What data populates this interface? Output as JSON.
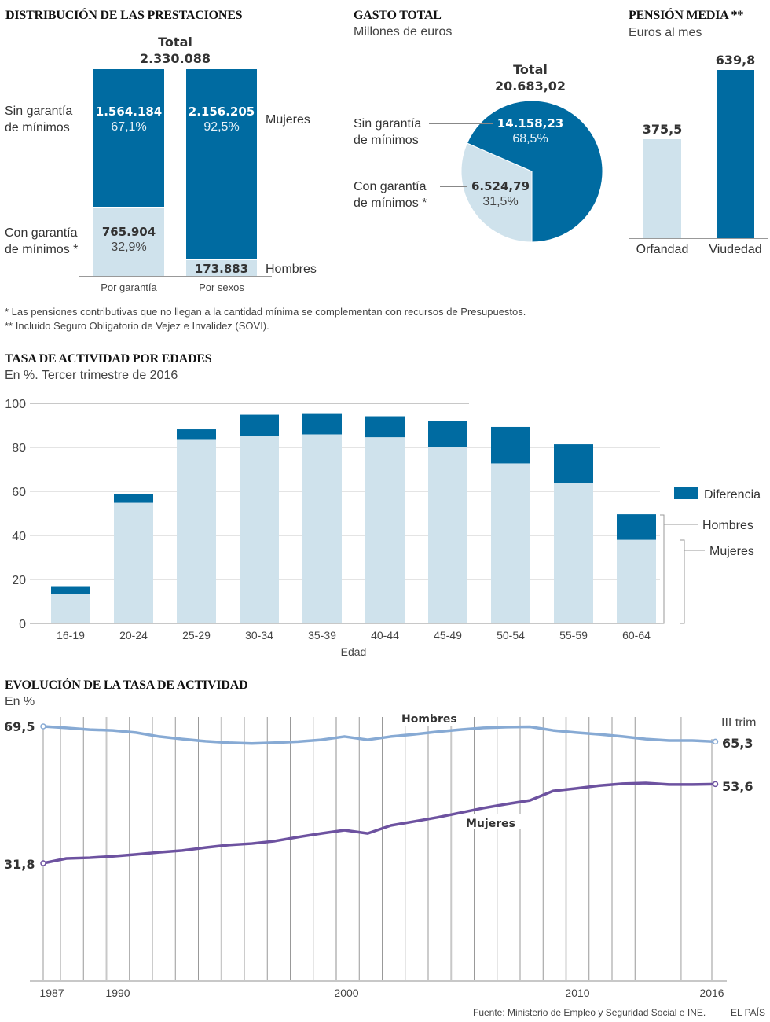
{
  "colors": {
    "dark": "#006ba1",
    "light": "#cfe2ec",
    "hombres_line": "#87aad4",
    "mujeres_line": "#6d52a0",
    "grid": "#c8c8c8"
  },
  "distribucion": {
    "title": "DISTRIBUCIÓN DE LAS PRESTACIONES",
    "total_label": "Total",
    "total_value": "2.330.088",
    "label_sin": [
      "Sin garantía",
      "de mínimos"
    ],
    "label_con": [
      "Con garantía",
      "de mínimos *"
    ],
    "label_mujeres": "Mujeres",
    "label_hombres": "Hombres",
    "bar1": {
      "category": "Por garantía",
      "top_value": "1.564.184",
      "top_pct": "67,1%",
      "bottom_value": "765.904",
      "bottom_pct": "32,9%"
    },
    "bar2": {
      "category": "Por sexos",
      "top_value": "2.156.205",
      "top_pct": "92,5%",
      "bottom_value": "173.883"
    }
  },
  "gasto": {
    "title": "GASTO TOTAL",
    "subtitle": "Millones de euros",
    "total_label": "Total",
    "total_value": "20.683,02",
    "label_sin": [
      "Sin garantía",
      "de mínimos"
    ],
    "label_con": [
      "Con garantía",
      "de mínimos *"
    ],
    "sin_value": "14.158,23",
    "sin_pct": "68,5%",
    "con_value": "6.524,79",
    "con_pct": "31,5%"
  },
  "pension": {
    "title": "PENSIÓN MEDIA **",
    "subtitle": "Euros al mes",
    "orfandad_label": "Orfandad",
    "orfandad_value": "375,5",
    "viudedad_label": "Viudedad",
    "viudedad_value": "639,8"
  },
  "notes": [
    "* Las pensiones contributivas que no llegan a la cantidad mínima se complementan con recursos de Presupuestos.",
    "** Incluido Seguro Obligatorio de Vejez e Invalidez (SOVI)."
  ],
  "tasa": {
    "title": "TASA DE ACTIVIDAD POR EDADES",
    "subtitle": "En %. Tercer trimestre de 2016",
    "legend_diferencia": "Diferencia",
    "legend_hombres": "Hombres",
    "legend_mujeres": "Mujeres",
    "xlabel": "Edad"
  },
  "evolucion": {
    "title": "EVOLUCIÓN DE LA TASA DE ACTIVIDAD",
    "subtitle": "En %",
    "start_hombres": "69,5",
    "start_mujeres": "31,8",
    "end_hombres": "65,3",
    "end_mujeres": "53,6",
    "end_period": "III trim",
    "label_hombres": "Hombres",
    "label_mujeres": "Mujeres"
  },
  "footer": {
    "source": "Fuente: Ministerio de Empleo y Seguridad Social e INE.",
    "brand": "EL PAÍS"
  },
  "chart_data": [
    {
      "type": "bar",
      "title": "DISTRIBUCIÓN DE LAS PRESTACIONES",
      "stacked": true,
      "categories": [
        "Por garantía",
        "Por sexos"
      ],
      "series": [
        {
          "name": "Sin garantía de mínimos / Mujeres",
          "values": [
            1564184,
            2156205
          ]
        },
        {
          "name": "Con garantía de mínimos / Hombres",
          "values": [
            765904,
            173883
          ]
        }
      ],
      "total": 2330088
    },
    {
      "type": "pie",
      "title": "GASTO TOTAL",
      "subtitle": "Millones de euros",
      "labels": [
        "Sin garantía de mínimos",
        "Con garantía de mínimos *"
      ],
      "values": [
        14158.23,
        6524.79
      ],
      "percentages": [
        68.5,
        31.5
      ],
      "total": 20683.02
    },
    {
      "type": "bar",
      "title": "PENSIÓN MEDIA **",
      "subtitle": "Euros al mes",
      "categories": [
        "Orfandad",
        "Viudedad"
      ],
      "values": [
        375.5,
        639.8
      ],
      "ylim": [
        0,
        700
      ]
    },
    {
      "type": "bar",
      "stacked": true,
      "title": "TASA DE ACTIVIDAD POR EDADES",
      "subtitle": "En %. Tercer trimestre de 2016",
      "xlabel": "Edad",
      "ylabel": "",
      "categories": [
        "16-19",
        "20-24",
        "25-29",
        "30-34",
        "35-39",
        "40-44",
        "45-49",
        "50-54",
        "55-59",
        "60-64"
      ],
      "series": [
        {
          "name": "Mujeres",
          "values": [
            13.4,
            54.8,
            83.4,
            85.2,
            85.9,
            84.6,
            80.0,
            72.7,
            63.6,
            38.0
          ]
        },
        {
          "name": "Hombres",
          "values": [
            16.6,
            58.6,
            88.2,
            94.8,
            95.5,
            94.1,
            92.1,
            89.3,
            81.4,
            49.6
          ]
        }
      ],
      "legend": [
        "Diferencia",
        "Hombres",
        "Mujeres"
      ],
      "legend_position": "right",
      "ylim": [
        0,
        100
      ],
      "yticks": [
        0,
        20,
        40,
        60,
        80,
        100
      ],
      "grid": true
    },
    {
      "type": "line",
      "title": "EVOLUCIÓN DE LA TASA DE ACTIVIDAD",
      "subtitle": "En %",
      "x": [
        1987,
        1988,
        1989,
        1990,
        1991,
        1992,
        1993,
        1994,
        1995,
        1996,
        1997,
        1998,
        1999,
        2000,
        2001,
        2002,
        2003,
        2004,
        2005,
        2006,
        2007,
        2008,
        2009,
        2010,
        2011,
        2012,
        2013,
        2014,
        2015,
        2016
      ],
      "series": [
        {
          "name": "Hombres",
          "values": [
            69.5,
            69.1,
            68.6,
            68.4,
            67.8,
            66.7,
            66.0,
            65.4,
            65.0,
            64.8,
            65.0,
            65.3,
            65.8,
            66.7,
            65.8,
            66.7,
            67.3,
            68.0,
            68.6,
            69.1,
            69.3,
            69.4,
            68.4,
            67.8,
            67.3,
            66.7,
            66.0,
            65.6,
            65.6,
            65.3
          ]
        },
        {
          "name": "Mujeres",
          "values": [
            31.8,
            33.1,
            33.3,
            33.7,
            34.2,
            34.8,
            35.3,
            36.1,
            36.8,
            37.2,
            37.9,
            39.0,
            40.0,
            40.9,
            40.0,
            42.2,
            43.3,
            44.4,
            45.7,
            47.0,
            48.1,
            49.1,
            51.7,
            52.4,
            53.2,
            53.7,
            53.9,
            53.5,
            53.5,
            53.6
          ]
        }
      ],
      "xticks": [
        "1987",
        "1990",
        "2000",
        "2010",
        "2016"
      ],
      "grid": true
    }
  ]
}
